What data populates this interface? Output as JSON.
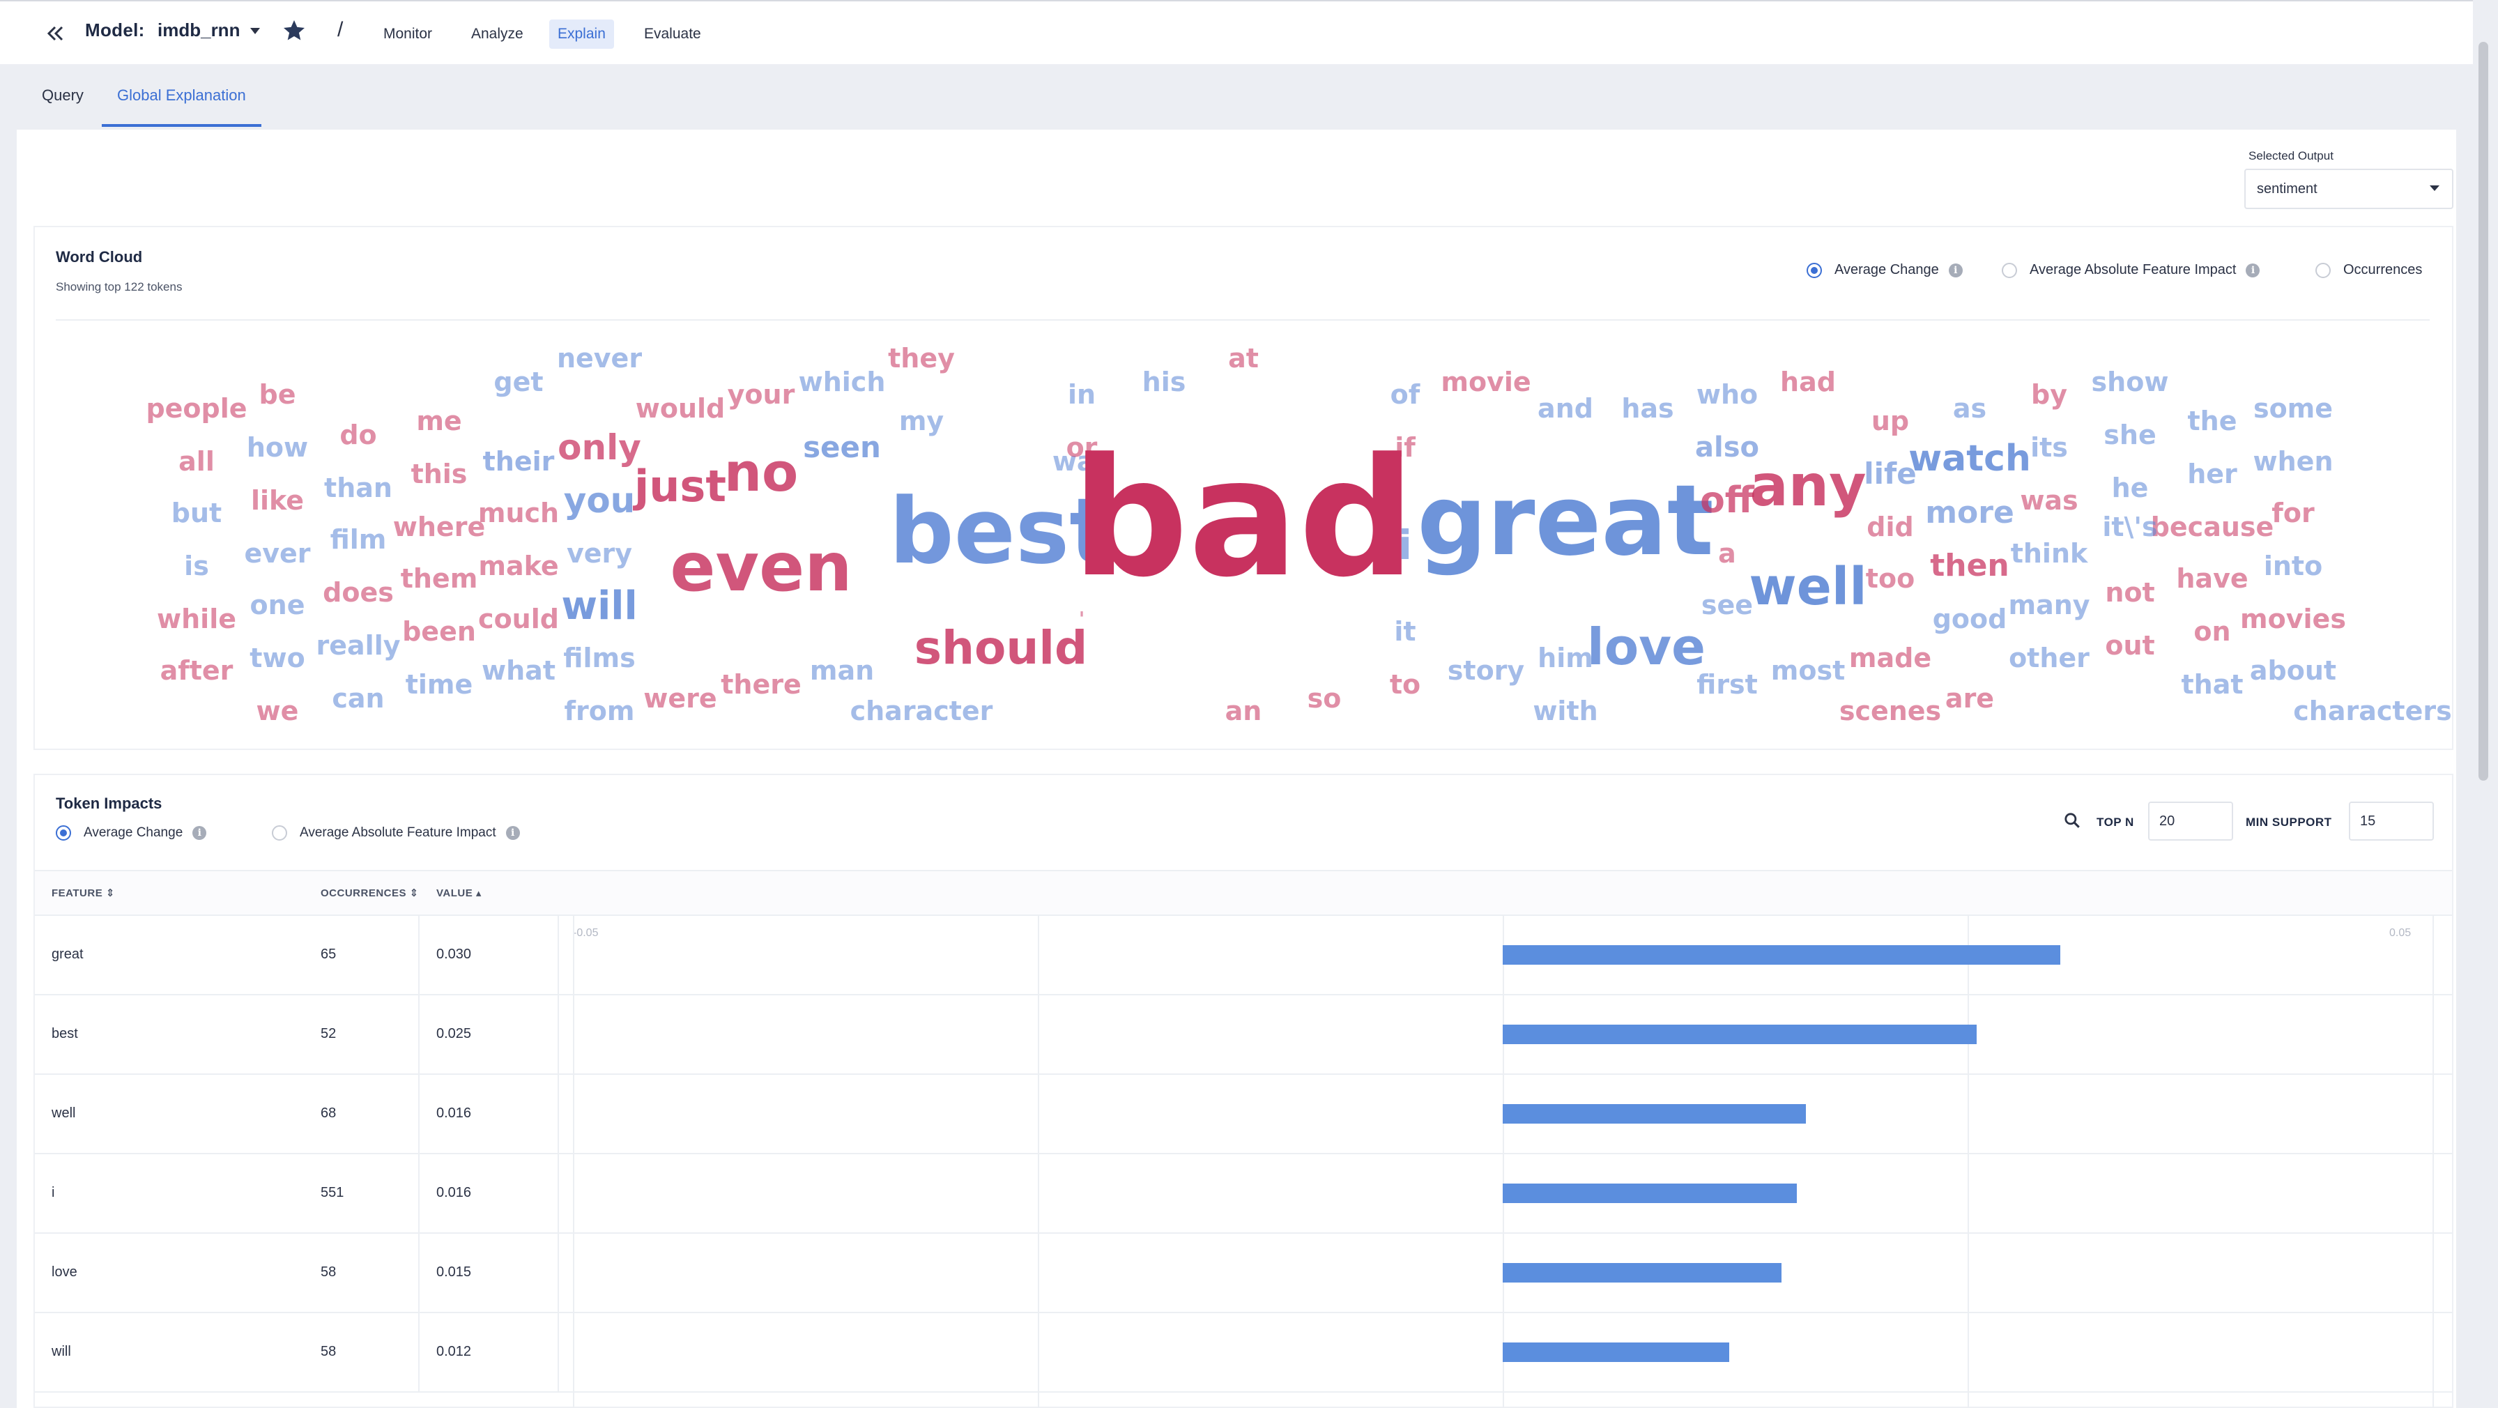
{
  "header": {
    "model_label": "Model:",
    "model_name": "imdb_rnn",
    "nav": [
      "Monitor",
      "Analyze",
      "Explain",
      "Evaluate"
    ],
    "active_nav": "Explain"
  },
  "subtabs": {
    "query": "Query",
    "global": "Global Explanation"
  },
  "selected_output": {
    "label": "Selected Output",
    "value": "sentiment"
  },
  "word_cloud": {
    "title": "Word Cloud",
    "subtitle": "Showing top 122 tokens",
    "modes": [
      "Average Change",
      "Average Absolute Feature Impact",
      "Occurrences"
    ],
    "selected_mode": "Average Change",
    "colors": {
      "positive": "#5b86d6",
      "negative": "#c8325f"
    },
    "words": [
      {
        "t": "people",
        "c": "n"
      },
      {
        "t": "be",
        "c": "n"
      },
      {
        "t": "get",
        "c": "p"
      },
      {
        "t": "never",
        "c": "p"
      },
      {
        "t": "would",
        "c": "n"
      },
      {
        "t": "your",
        "c": "n"
      },
      {
        "t": "which",
        "c": "p"
      },
      {
        "t": "they",
        "c": "n"
      },
      {
        "t": "in",
        "c": "p"
      },
      {
        "t": "his",
        "c": "p"
      },
      {
        "t": "at",
        "c": "n"
      },
      {
        "t": "of",
        "c": "p"
      },
      {
        "t": "movie",
        "c": "n"
      },
      {
        "t": "and",
        "c": "p"
      },
      {
        "t": "has",
        "c": "p"
      },
      {
        "t": "who",
        "c": "p"
      },
      {
        "t": "had",
        "c": "n"
      },
      {
        "t": "as",
        "c": "p"
      },
      {
        "t": "by",
        "c": "n"
      },
      {
        "t": "show",
        "c": "p"
      },
      {
        "t": "the",
        "c": "p"
      },
      {
        "t": "some",
        "c": "p"
      },
      {
        "t": "all",
        "c": "n"
      },
      {
        "t": "how",
        "c": "p"
      },
      {
        "t": "do",
        "c": "n"
      },
      {
        "t": "me",
        "c": "n"
      },
      {
        "t": "seen",
        "c": "p"
      },
      {
        "t": "my",
        "c": "p"
      },
      {
        "t": "way",
        "c": "p"
      },
      {
        "t": "up",
        "c": "n"
      },
      {
        "t": "she",
        "c": "p"
      },
      {
        "t": "or",
        "c": "n"
      },
      {
        "t": "if",
        "c": "n"
      },
      {
        "t": "also",
        "c": "p"
      },
      {
        "t": "its",
        "c": "p"
      },
      {
        "t": "but",
        "c": "p"
      },
      {
        "t": "like",
        "c": "n"
      },
      {
        "t": "than",
        "c": "p"
      },
      {
        "t": "this",
        "c": "n"
      },
      {
        "t": "their",
        "c": "p"
      },
      {
        "t": "only",
        "c": "n"
      },
      {
        "t": "no",
        "c": "n"
      },
      {
        "t": "just",
        "c": "n"
      },
      {
        "t": "watch",
        "c": "p"
      },
      {
        "t": "life",
        "c": "p"
      },
      {
        "t": "her",
        "c": "p"
      },
      {
        "t": "when",
        "c": "p"
      },
      {
        "t": "is",
        "c": "p"
      },
      {
        "t": "ever",
        "c": "p"
      },
      {
        "t": "film",
        "c": "p"
      },
      {
        "t": "where",
        "c": "n"
      },
      {
        "t": "much",
        "c": "n"
      },
      {
        "t": "you",
        "c": "p"
      },
      {
        "t": "best",
        "c": "p"
      },
      {
        "t": "bad",
        "c": "n"
      },
      {
        "t": "great",
        "c": "p"
      },
      {
        "t": "off",
        "c": "n"
      },
      {
        "t": "any",
        "c": "n"
      },
      {
        "t": "he",
        "c": "p"
      },
      {
        "t": "more",
        "c": "p"
      },
      {
        "t": "was",
        "c": "n"
      },
      {
        "t": "for",
        "c": "n"
      },
      {
        "t": "i",
        "c": "p"
      },
      {
        "t": "a",
        "c": "n"
      },
      {
        "t": "did",
        "c": "n"
      },
      {
        "t": "because",
        "c": "n"
      },
      {
        "t": "it\\'s",
        "c": "p"
      },
      {
        "t": "think",
        "c": "p"
      },
      {
        "t": "while",
        "c": "n"
      },
      {
        "t": "one",
        "c": "p"
      },
      {
        "t": "does",
        "c": "n"
      },
      {
        "t": "them",
        "c": "n"
      },
      {
        "t": "make",
        "c": "n"
      },
      {
        "t": "very",
        "c": "p"
      },
      {
        "t": "even",
        "c": "n"
      },
      {
        "t": "then",
        "c": "n"
      },
      {
        "t": "too",
        "c": "n"
      },
      {
        "t": "into",
        "c": "p"
      },
      {
        "t": "will",
        "c": "p"
      },
      {
        "t": "well",
        "c": "p"
      },
      {
        "t": "see",
        "c": "p"
      },
      {
        "t": "have",
        "c": "n"
      },
      {
        "t": "not",
        "c": "n"
      },
      {
        "t": "many",
        "c": "p"
      },
      {
        "t": "good",
        "c": "p"
      },
      {
        "t": "movies",
        "c": "n"
      },
      {
        "t": "after",
        "c": "n"
      },
      {
        "t": "two",
        "c": "p"
      },
      {
        "t": "really",
        "c": "p"
      },
      {
        "t": "been",
        "c": "n"
      },
      {
        "t": "could",
        "c": "n"
      },
      {
        "t": "should",
        "c": "n"
      },
      {
        "t": "'",
        "c": "n"
      },
      {
        "t": "it",
        "c": "p"
      },
      {
        "t": "love",
        "c": "p"
      },
      {
        "t": "on",
        "c": "n"
      },
      {
        "t": "out",
        "c": "n"
      },
      {
        "t": "other",
        "c": "p"
      },
      {
        "t": "him",
        "c": "p"
      },
      {
        "t": "films",
        "c": "p"
      },
      {
        "t": "what",
        "c": "p"
      },
      {
        "t": "time",
        "c": "p"
      },
      {
        "t": "there",
        "c": "n"
      },
      {
        "t": "man",
        "c": "p"
      },
      {
        "t": "story",
        "c": "p"
      },
      {
        "t": "made",
        "c": "n"
      },
      {
        "t": "most",
        "c": "p"
      },
      {
        "t": "first",
        "c": "p"
      },
      {
        "t": "to",
        "c": "n"
      },
      {
        "t": "about",
        "c": "p"
      },
      {
        "t": "that",
        "c": "p"
      },
      {
        "t": "we",
        "c": "n"
      },
      {
        "t": "can",
        "c": "p"
      },
      {
        "t": "from",
        "c": "p"
      },
      {
        "t": "were",
        "c": "n"
      },
      {
        "t": "character",
        "c": "p"
      },
      {
        "t": "an",
        "c": "n"
      },
      {
        "t": "so",
        "c": "n"
      },
      {
        "t": "with",
        "c": "p"
      },
      {
        "t": "scenes",
        "c": "n"
      },
      {
        "t": "are",
        "c": "n"
      },
      {
        "t": "characters",
        "c": "p"
      }
    ]
  },
  "token_impacts": {
    "title": "Token Impacts",
    "modes": [
      "Average Change",
      "Average Absolute Feature Impact"
    ],
    "selected_mode": "Average Change",
    "top_n_label": "TOP N",
    "top_n": "20",
    "min_support_label": "MIN SUPPORT",
    "min_support": "15",
    "columns": {
      "feature": "FEATURE",
      "occurrences": "OCCURRENCES",
      "value": "VALUE"
    },
    "axis": {
      "min_label": "-0.05",
      "max_label": "0.05",
      "min": -0.05,
      "max": 0.05
    },
    "rows": [
      {
        "feature": "great",
        "occurrences": "65",
        "value": "0.030",
        "v": 0.03
      },
      {
        "feature": "best",
        "occurrences": "52",
        "value": "0.025",
        "v": 0.0255
      },
      {
        "feature": "well",
        "occurrences": "68",
        "value": "0.016",
        "v": 0.0163
      },
      {
        "feature": "i",
        "occurrences": "551",
        "value": "0.016",
        "v": 0.0158
      },
      {
        "feature": "love",
        "occurrences": "58",
        "value": "0.015",
        "v": 0.015
      },
      {
        "feature": "will",
        "occurrences": "58",
        "value": "0.012",
        "v": 0.0122
      }
    ]
  }
}
